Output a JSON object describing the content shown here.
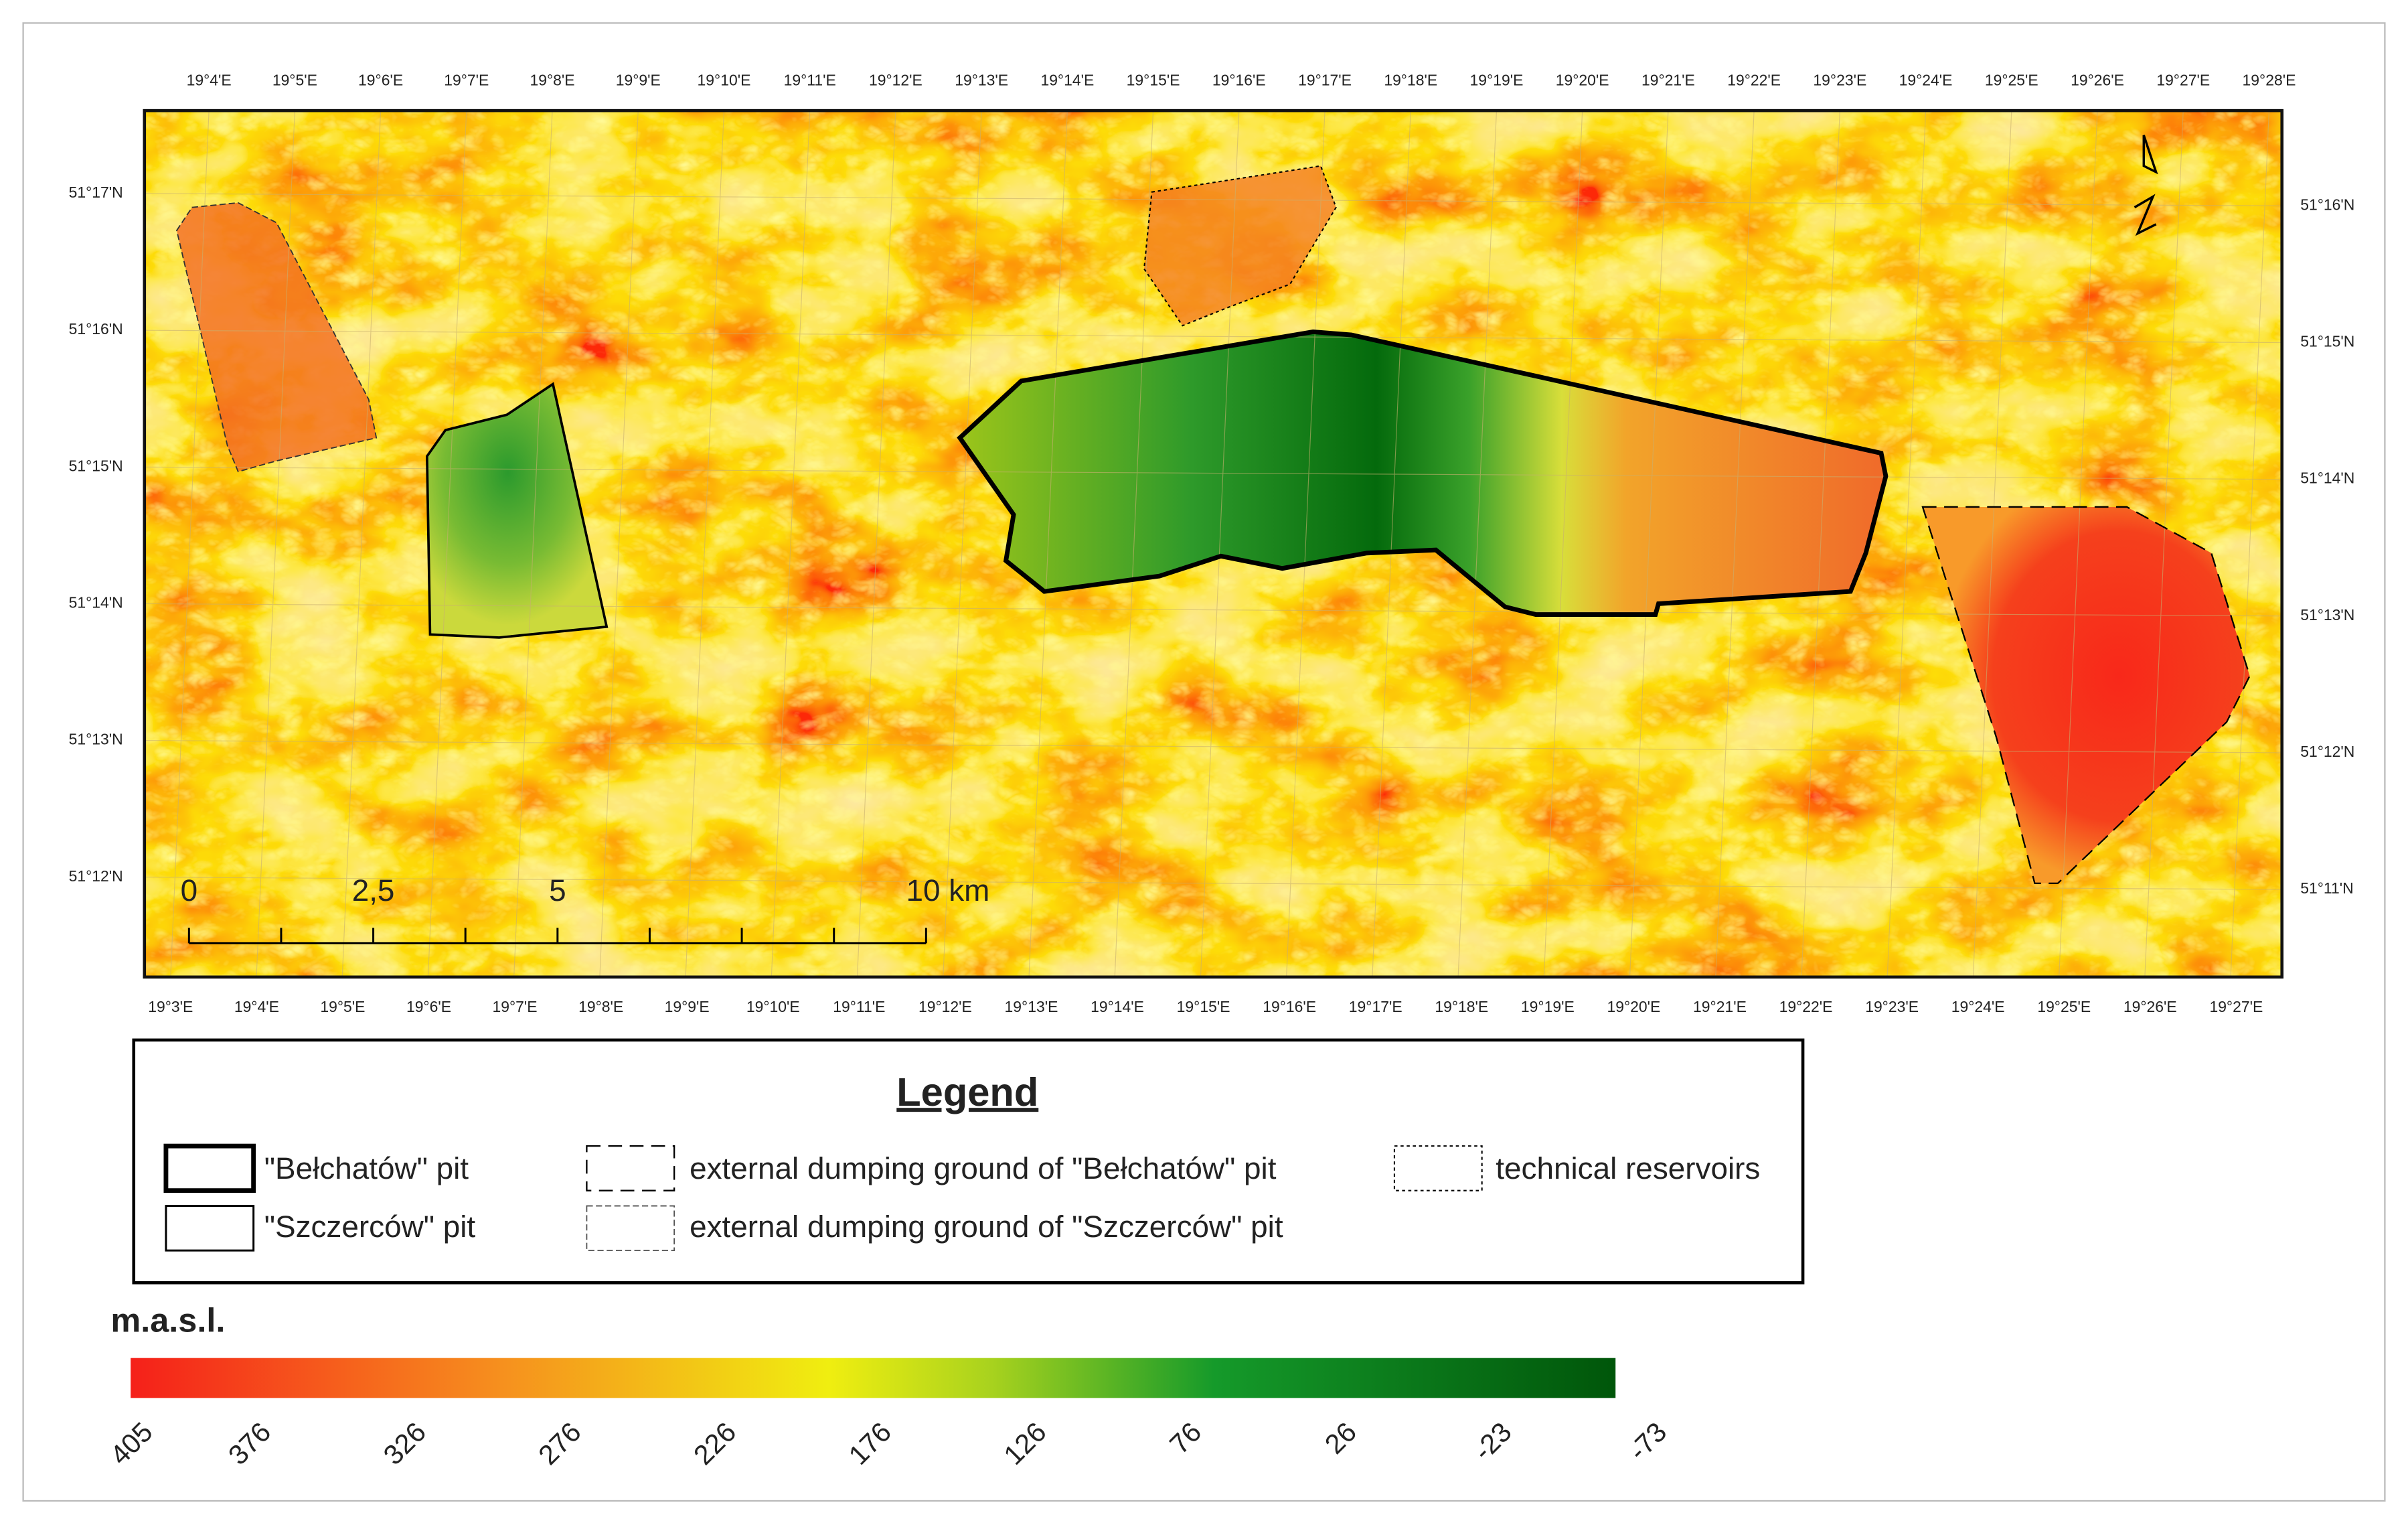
{
  "map": {
    "top_labels": [
      "19°4'E",
      "19°5'E",
      "19°6'E",
      "19°7'E",
      "19°8'E",
      "19°9'E",
      "19°10'E",
      "19°11'E",
      "19°12'E",
      "19°13'E",
      "19°14'E",
      "19°15'E",
      "19°16'E",
      "19°17'E",
      "19°18'E",
      "19°19'E",
      "19°20'E",
      "19°21'E",
      "19°22'E",
      "19°23'E",
      "19°24'E",
      "19°25'E",
      "19°26'E",
      "19°27'E",
      "19°28'E"
    ],
    "bottom_labels": [
      "19°3'E",
      "19°4'E",
      "19°5'E",
      "19°6'E",
      "19°7'E",
      "19°8'E",
      "19°9'E",
      "19°10'E",
      "19°11'E",
      "19°12'E",
      "19°13'E",
      "19°14'E",
      "19°15'E",
      "19°16'E",
      "19°17'E",
      "19°18'E",
      "19°19'E",
      "19°20'E",
      "19°21'E",
      "19°22'E",
      "19°23'E",
      "19°24'E",
      "19°25'E",
      "19°26'E",
      "19°27'E"
    ],
    "left_labels": [
      "51°17'N",
      "51°16'N",
      "51°15'N",
      "51°14'N",
      "51°13'N",
      "51°12'N"
    ],
    "right_labels": [
      "51°16'N",
      "51°15'N",
      "51°14'N",
      "51°13'N",
      "51°12'N",
      "51°11'N"
    ],
    "scale_labels": [
      "0",
      "2,5",
      "5",
      "10 km"
    ],
    "legend": {
      "title": "Legend",
      "items": [
        "\"Bełchatów\" pit",
        "\"Szczerców\" pit",
        "external dumping ground of \"Bełchatów\" pit",
        "external dumping ground of \"Szczerców\" pit",
        "technical reservoirs"
      ]
    },
    "colorbar": {
      "title": "m.a.s.l.",
      "labels": [
        405,
        376,
        326,
        276,
        226,
        176,
        126,
        76,
        26,
        -23,
        -73
      ]
    }
  }
}
